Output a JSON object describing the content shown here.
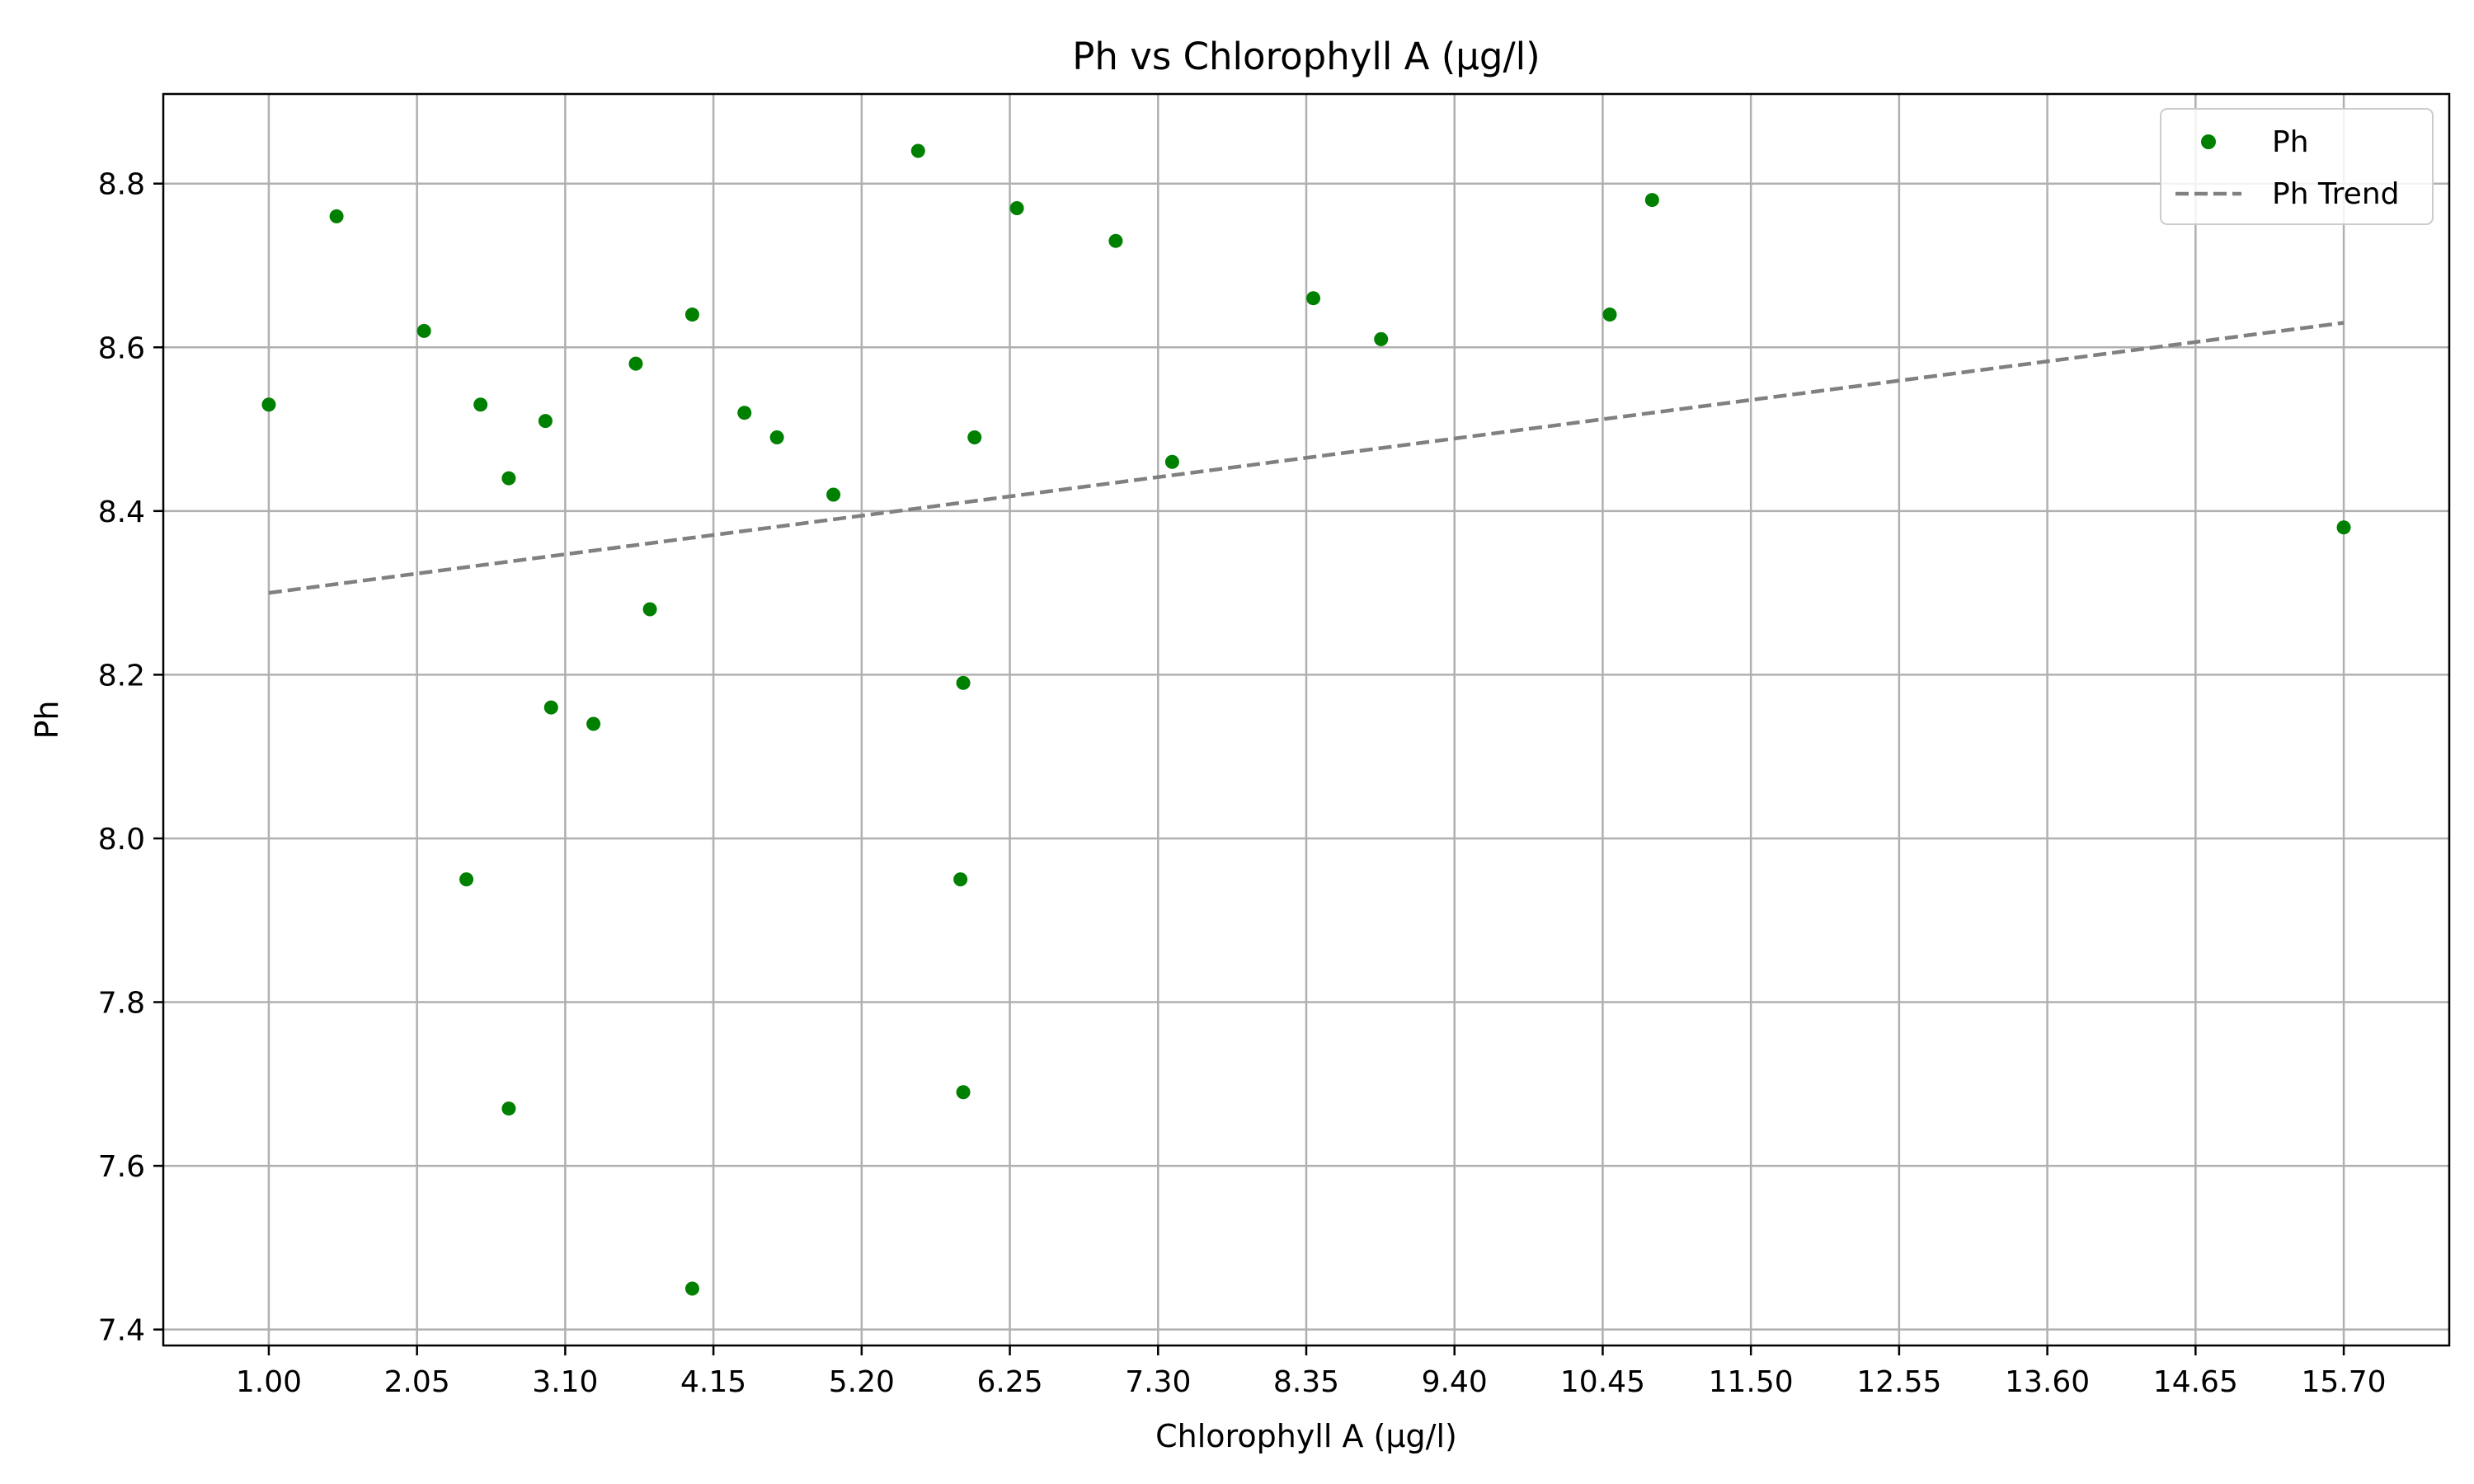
{
  "chart_data": {
    "type": "scatter",
    "title": "Ph vs Chlorophyll A (µg/l)",
    "xlabel": "Chlorophyll A (µg/l)",
    "ylabel": "Ph",
    "xlim": [
      0.2525,
      16.4475
    ],
    "ylim": [
      7.3805,
      8.9095
    ],
    "x_ticks": [
      1.0,
      2.05,
      3.1,
      4.15,
      5.2,
      6.25,
      7.3,
      8.35,
      9.4,
      10.45,
      11.5,
      12.55,
      13.6,
      14.65,
      15.7
    ],
    "x_tick_labels": [
      "1.00",
      "2.05",
      "3.10",
      "4.15",
      "5.20",
      "6.25",
      "7.30",
      "8.35",
      "9.40",
      "10.45",
      "11.50",
      "12.55",
      "13.60",
      "14.65",
      "15.70"
    ],
    "y_ticks": [
      7.4,
      7.6,
      7.8,
      8.0,
      8.2,
      8.4,
      8.6,
      8.8
    ],
    "y_tick_labels": [
      "7.4",
      "7.6",
      "7.8",
      "8.0",
      "8.2",
      "8.4",
      "8.6",
      "8.8"
    ],
    "grid": true,
    "legend_position": "top-right",
    "series": [
      {
        "name": "Ph",
        "kind": "scatter",
        "color": "#008000",
        "points": [
          {
            "x": 1.0,
            "y": 8.53
          },
          {
            "x": 1.48,
            "y": 8.76
          },
          {
            "x": 2.1,
            "y": 8.62
          },
          {
            "x": 2.4,
            "y": 7.95
          },
          {
            "x": 2.5,
            "y": 8.53
          },
          {
            "x": 2.7,
            "y": 8.44
          },
          {
            "x": 2.7,
            "y": 7.67
          },
          {
            "x": 2.96,
            "y": 8.51
          },
          {
            "x": 3.0,
            "y": 8.16
          },
          {
            "x": 3.3,
            "y": 8.14
          },
          {
            "x": 3.6,
            "y": 8.58
          },
          {
            "x": 3.7,
            "y": 8.28
          },
          {
            "x": 4.0,
            "y": 8.64
          },
          {
            "x": 4.0,
            "y": 7.45
          },
          {
            "x": 4.37,
            "y": 8.52
          },
          {
            "x": 4.6,
            "y": 8.49
          },
          {
            "x": 5.0,
            "y": 8.42
          },
          {
            "x": 5.6,
            "y": 8.84
          },
          {
            "x": 5.9,
            "y": 7.95
          },
          {
            "x": 5.92,
            "y": 8.19
          },
          {
            "x": 5.92,
            "y": 7.69
          },
          {
            "x": 6.0,
            "y": 8.49
          },
          {
            "x": 6.3,
            "y": 8.77
          },
          {
            "x": 7.0,
            "y": 8.73
          },
          {
            "x": 7.4,
            "y": 8.46
          },
          {
            "x": 8.4,
            "y": 8.66
          },
          {
            "x": 8.88,
            "y": 8.61
          },
          {
            "x": 10.5,
            "y": 8.64
          },
          {
            "x": 10.8,
            "y": 8.78
          },
          {
            "x": 15.7,
            "y": 8.38
          }
        ]
      },
      {
        "name": "Ph Trend",
        "kind": "line",
        "style": "dashed",
        "color": "#808080",
        "points": [
          {
            "x": 1.0,
            "y": 8.3
          },
          {
            "x": 15.7,
            "y": 8.63
          }
        ]
      }
    ]
  }
}
